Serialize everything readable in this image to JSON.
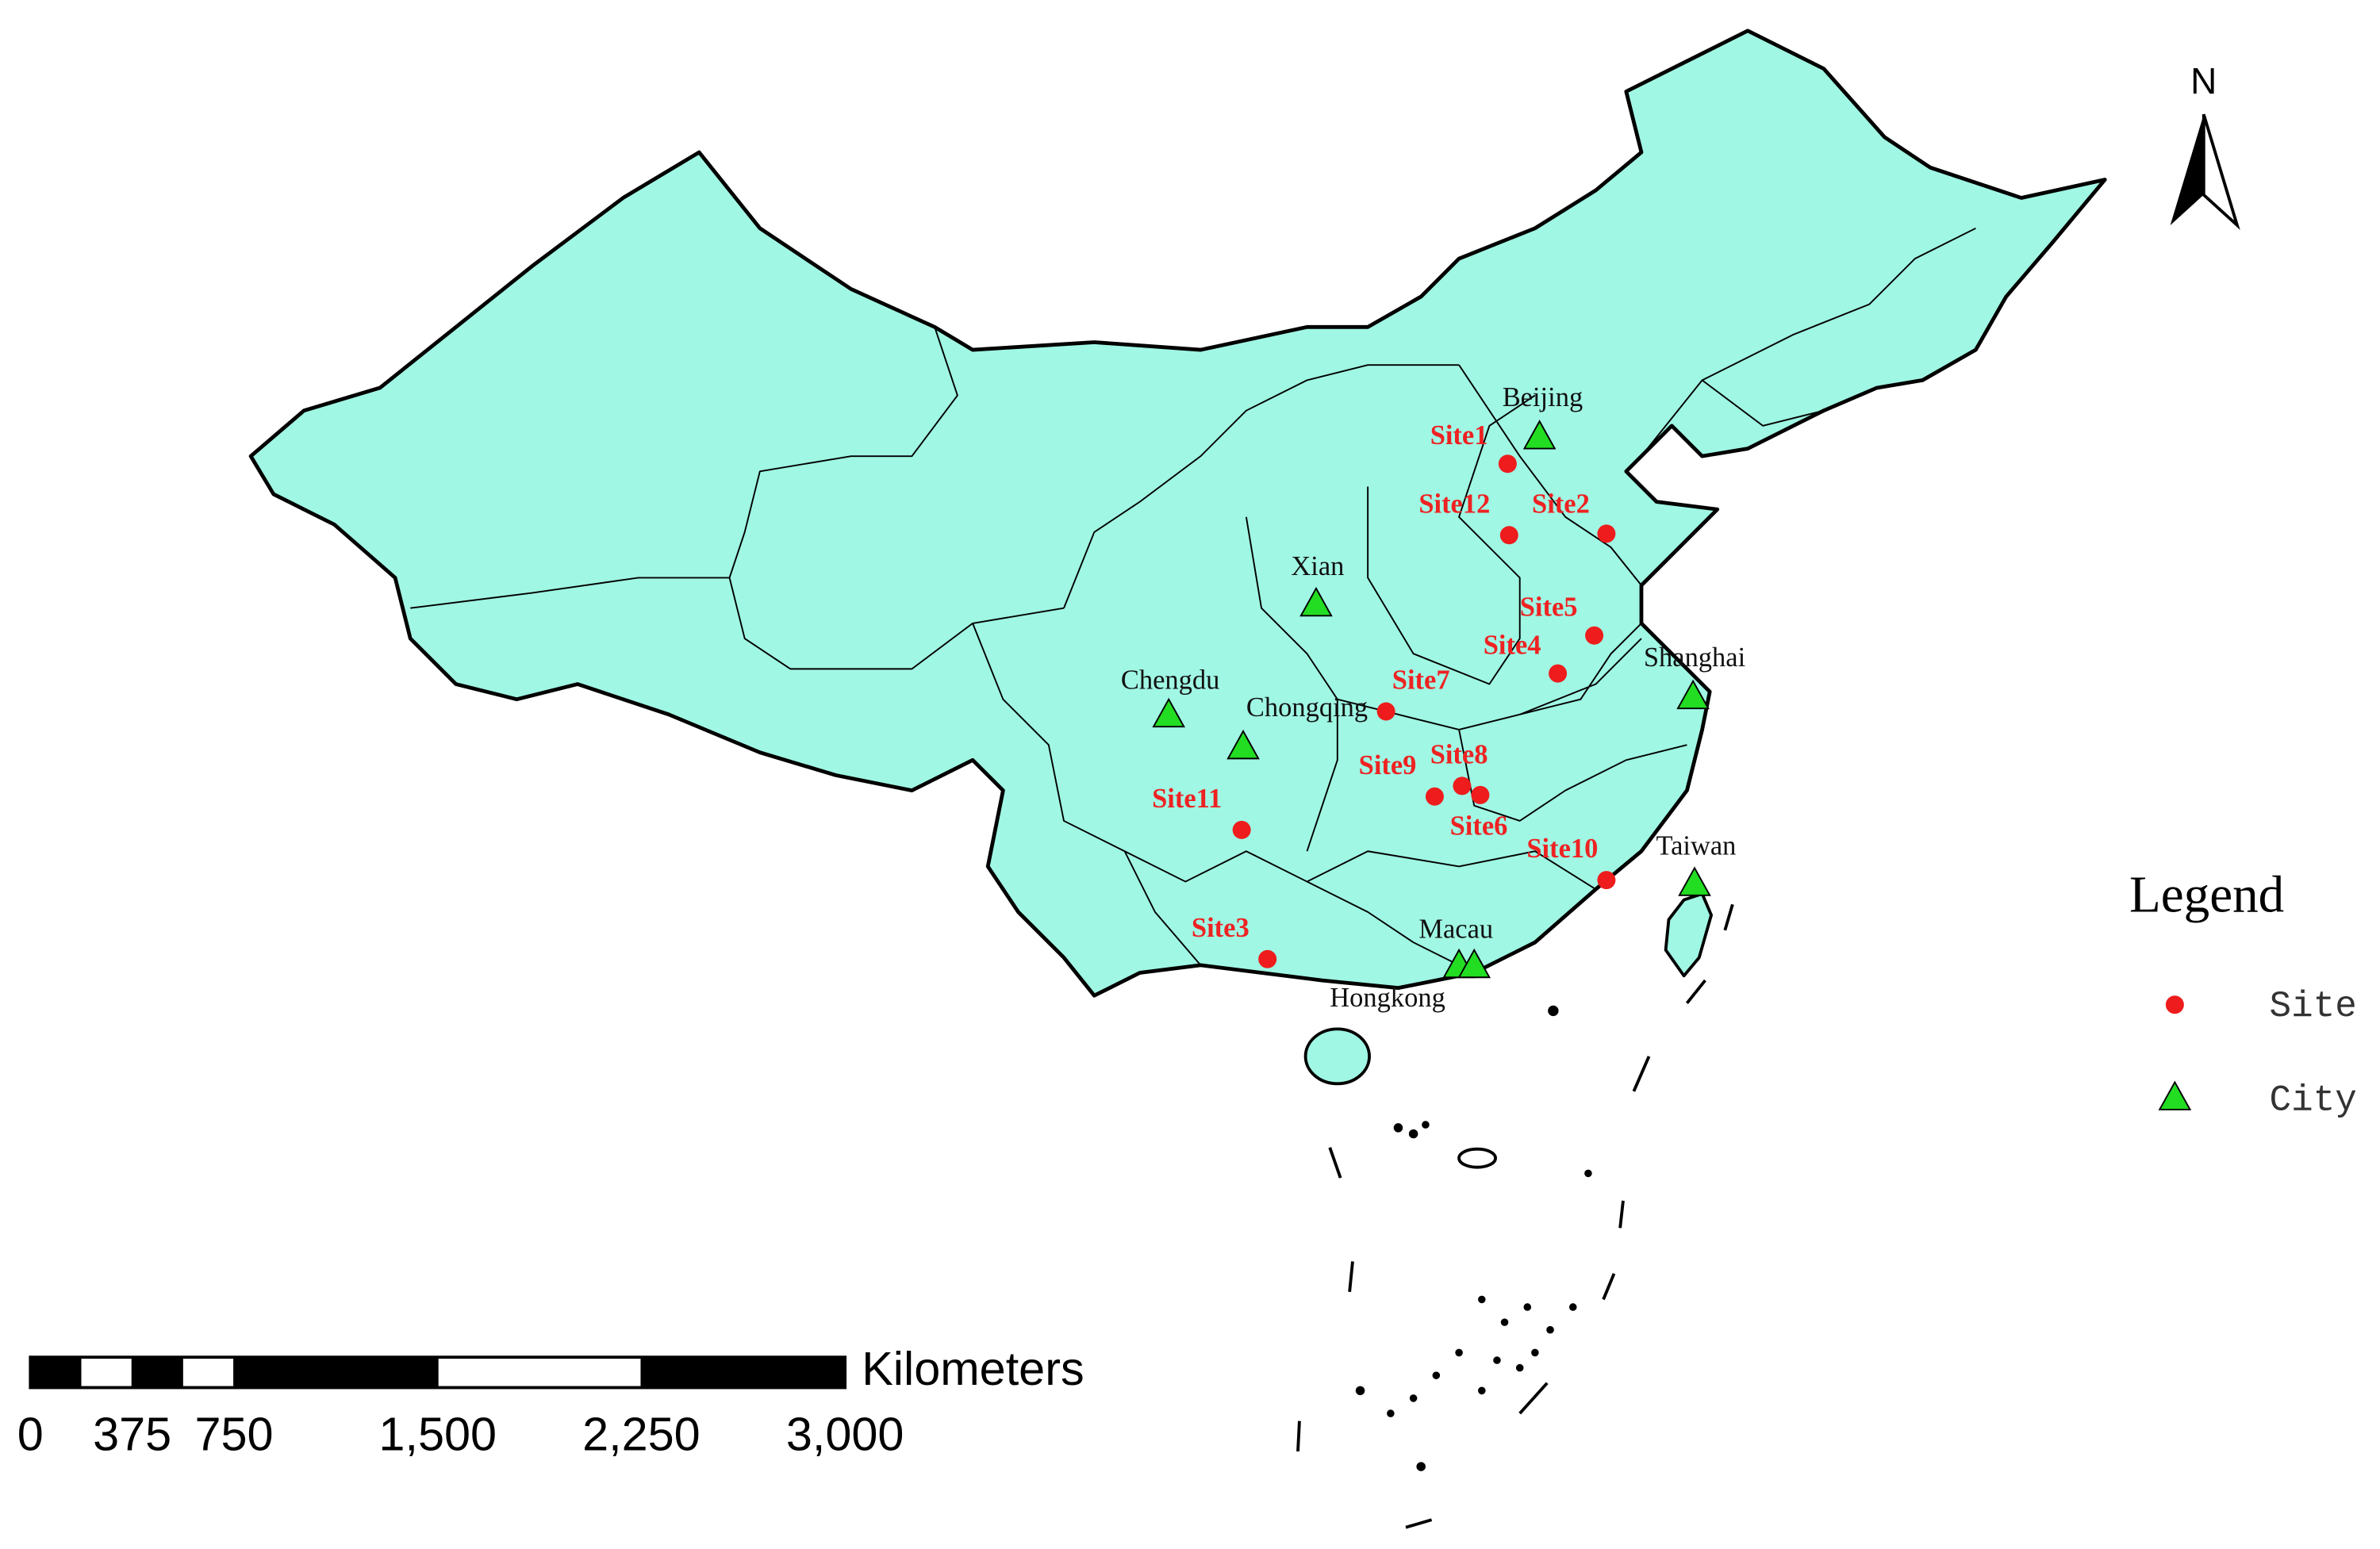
{
  "map": {
    "north_label": "N",
    "legend": {
      "title": "Legend",
      "items": [
        {
          "label": "Site"
        },
        {
          "label": "City"
        }
      ]
    },
    "sites": [
      {
        "label": "Site1"
      },
      {
        "label": "Site12"
      },
      {
        "label": "Site2"
      },
      {
        "label": "Site5"
      },
      {
        "label": "Site4"
      },
      {
        "label": "Site7"
      },
      {
        "label": "Site8"
      },
      {
        "label": "Site9"
      },
      {
        "label": "Site6"
      },
      {
        "label": "Site11"
      },
      {
        "label": "Site10"
      },
      {
        "label": "Site3"
      }
    ],
    "cities": [
      {
        "label": "Beijing"
      },
      {
        "label": "Xian"
      },
      {
        "label": "Chengdu"
      },
      {
        "label": "Chongqing"
      },
      {
        "label": "Shanghai"
      },
      {
        "label": "Taiwan"
      },
      {
        "label": "Macau"
      },
      {
        "label": "Hongkong"
      }
    ],
    "scale_bar": {
      "unit": "Kilometers",
      "range": [
        0,
        3000
      ],
      "ticks": [
        0,
        375,
        750,
        {
          "value": 1500,
          "label": "1,500"
        },
        {
          "value": 2250,
          "label": "2,250"
        },
        {
          "value": 3000,
          "label": "3,000"
        }
      ]
    }
  }
}
